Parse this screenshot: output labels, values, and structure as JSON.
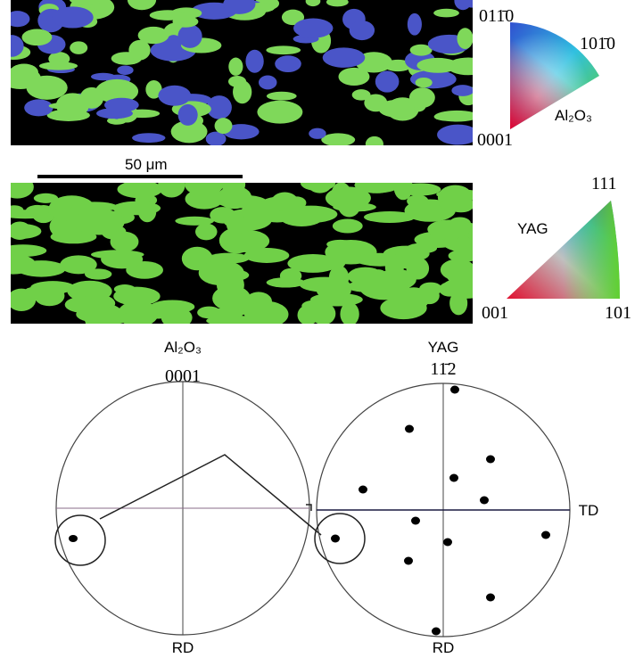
{
  "top_map": {
    "key_labels": [
      "011̄0",
      "101̄0",
      "Al₂O₃",
      "0001"
    ]
  },
  "scale_bar": {
    "label": "50 μm"
  },
  "bottom_map": {
    "key_labels": [
      "111",
      "YAG",
      "001",
      "101"
    ]
  },
  "pole_figures": {
    "left": {
      "phase": "Al₂O₃",
      "pole": "0001",
      "bottom_label": "RD"
    },
    "right": {
      "phase": "YAG",
      "pole": "11̄2",
      "right_label": "TD",
      "bottom_label": "RD"
    }
  }
}
